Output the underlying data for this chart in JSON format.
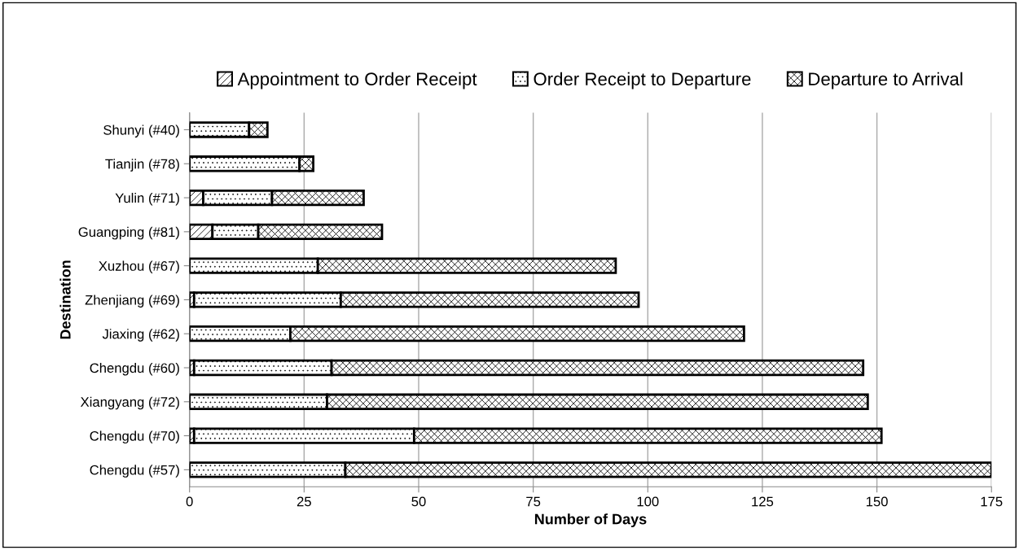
{
  "chart_data": {
    "type": "bar",
    "orientation": "horizontal",
    "stacked": true,
    "xlabel": "Number of Days",
    "ylabel": "Destination",
    "categories": [
      "Shunyi (#40)",
      "Tianjin (#78)",
      "Yulin (#71)",
      "Guangping (#81)",
      "Xuzhou (#67)",
      "Zhenjiang (#69)",
      "Jiaxing (#62)",
      "Chengdu (#60)",
      "Xiangyang (#72)",
      "Chengdu (#70)",
      "Chengdu (#57)"
    ],
    "series": [
      {
        "name": "Appointment to Order Receipt",
        "color": "#000000",
        "values": [
          0,
          0,
          3,
          5,
          0,
          1,
          0,
          1,
          0,
          1,
          0
        ]
      },
      {
        "name": "Order Receipt to Departure",
        "color": "#000000",
        "values": [
          13,
          24,
          15,
          10,
          28,
          32,
          22,
          30,
          30,
          48,
          34
        ]
      },
      {
        "name": "Departure to Arrival",
        "color": "#000000",
        "values": [
          4,
          3,
          20,
          27,
          65,
          65,
          99,
          116,
          118,
          102,
          141
        ]
      }
    ],
    "xlim": [
      0,
      175
    ],
    "xticks": [
      0,
      25,
      50,
      75,
      100,
      125,
      150,
      175
    ],
    "grid": "x",
    "legend": "top"
  }
}
